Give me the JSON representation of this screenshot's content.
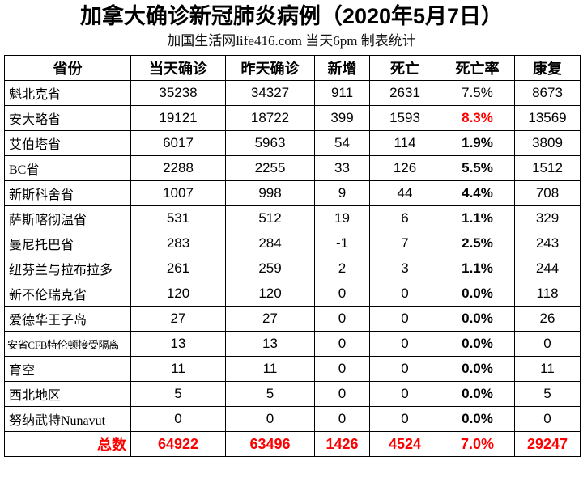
{
  "title": "加拿大确诊新冠肺炎病例（2020年5月7日）",
  "subtitle": "加国生活网life416.com 当天6pm 制表统计",
  "colors": {
    "accent_red": "#FF0000",
    "text": "#000000",
    "border": "#000000",
    "background": "#FFFFFF"
  },
  "table": {
    "columns": [
      {
        "key": "province",
        "label": "省份"
      },
      {
        "key": "today",
        "label": "当天确诊"
      },
      {
        "key": "yesterday",
        "label": "昨天确诊"
      },
      {
        "key": "new",
        "label": "新增"
      },
      {
        "key": "deaths",
        "label": "死亡"
      },
      {
        "key": "death_rate",
        "label": "死亡率"
      },
      {
        "key": "recovered",
        "label": "康复"
      }
    ],
    "rows": [
      {
        "province": "魁北克省",
        "today": "35238",
        "yesterday": "34327",
        "new": "911",
        "deaths": "2631",
        "death_rate": "7.5%",
        "recovered": "8673",
        "death_rate_style": "normal"
      },
      {
        "province": "安大略省",
        "today": "19121",
        "yesterday": "18722",
        "new": "399",
        "deaths": "1593",
        "death_rate": "8.3%",
        "recovered": "13569",
        "death_rate_style": "red-bold"
      },
      {
        "province": "艾伯塔省",
        "today": "6017",
        "yesterday": "5963",
        "new": "54",
        "deaths": "114",
        "death_rate": "1.9%",
        "recovered": "3809",
        "death_rate_style": "bold"
      },
      {
        "province": "BC省",
        "today": "2288",
        "yesterday": "2255",
        "new": "33",
        "deaths": "126",
        "death_rate": "5.5%",
        "recovered": "1512",
        "death_rate_style": "bold"
      },
      {
        "province": "新斯科舍省",
        "today": "1007",
        "yesterday": "998",
        "new": "9",
        "deaths": "44",
        "death_rate": "4.4%",
        "recovered": "708",
        "death_rate_style": "bold"
      },
      {
        "province": "萨斯喀彻温省",
        "today": "531",
        "yesterday": "512",
        "new": "19",
        "deaths": "6",
        "death_rate": "1.1%",
        "recovered": "329",
        "death_rate_style": "bold"
      },
      {
        "province": "曼尼托巴省",
        "today": "283",
        "yesterday": "284",
        "new": "-1",
        "deaths": "7",
        "death_rate": "2.5%",
        "recovered": "243",
        "death_rate_style": "bold"
      },
      {
        "province": "纽芬兰与拉布拉多",
        "today": "261",
        "yesterday": "259",
        "new": "2",
        "deaths": "3",
        "death_rate": "1.1%",
        "recovered": "244",
        "death_rate_style": "bold"
      },
      {
        "province": "新不伦瑞克省",
        "today": "120",
        "yesterday": "120",
        "new": "0",
        "deaths": "0",
        "death_rate": "0.0%",
        "recovered": "118",
        "death_rate_style": "bold"
      },
      {
        "province": "爱德华王子岛",
        "today": "27",
        "yesterday": "27",
        "new": "0",
        "deaths": "0",
        "death_rate": "0.0%",
        "recovered": "26",
        "death_rate_style": "bold"
      },
      {
        "province": "安省CFB特伦顿接受隔离",
        "today": "13",
        "yesterday": "13",
        "new": "0",
        "deaths": "0",
        "death_rate": "0.0%",
        "recovered": "0",
        "death_rate_style": "bold",
        "small_font": true
      },
      {
        "province": "育空",
        "today": "11",
        "yesterday": "11",
        "new": "0",
        "deaths": "0",
        "death_rate": "0.0%",
        "recovered": "11",
        "death_rate_style": "bold"
      },
      {
        "province": "西北地区",
        "today": "5",
        "yesterday": "5",
        "new": "0",
        "deaths": "0",
        "death_rate": "0.0%",
        "recovered": "5",
        "death_rate_style": "bold"
      },
      {
        "province": "努纳武特Nunavut",
        "today": "0",
        "yesterday": "0",
        "new": "0",
        "deaths": "0",
        "death_rate": "0.0%",
        "recovered": "0",
        "death_rate_style": "bold"
      }
    ],
    "total": {
      "label": "总数",
      "today": "64922",
      "yesterday": "63496",
      "new": "1426",
      "deaths": "4524",
      "death_rate": "7.0%",
      "recovered": "29247"
    }
  }
}
